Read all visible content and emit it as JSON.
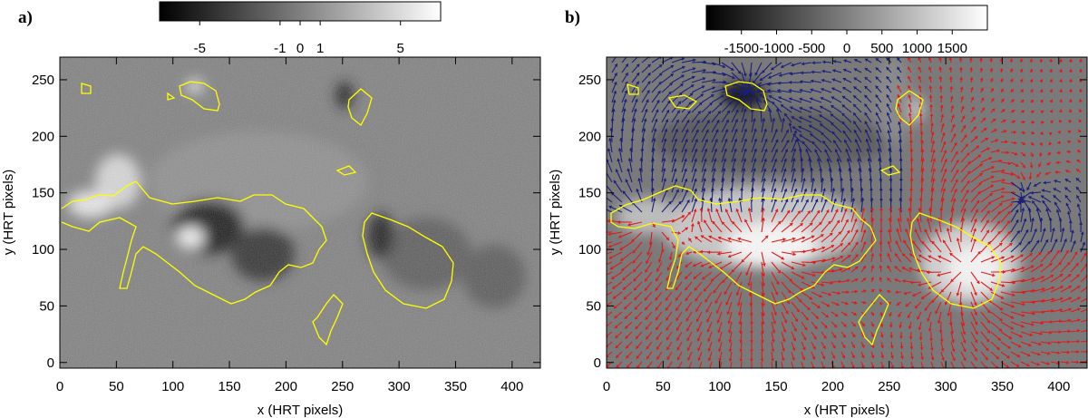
{
  "chart_data": [
    {
      "panel_label": "a)",
      "type": "heatmap",
      "xlabel": "x (HRT pixels)",
      "ylabel": "y (HRT pixels)",
      "xlim": [
        0,
        425
      ],
      "ylim": [
        -5,
        270
      ],
      "x_ticks": [
        0,
        50,
        100,
        150,
        200,
        250,
        300,
        350,
        400
      ],
      "y_ticks": [
        0,
        50,
        100,
        150,
        200,
        250
      ],
      "colorbar": {
        "range": [
          -7,
          7
        ],
        "ticks": [
          -5,
          -1,
          0,
          1,
          5
        ],
        "tick_labels": [
          "-5",
          "-1",
          "0",
          "1",
          "5"
        ],
        "colormap": "grayscale (black to white)"
      },
      "contour_color": "#ffff00"
    },
    {
      "panel_label": "b)",
      "type": "heatmap",
      "xlabel": "x (HRT pixels)",
      "ylabel": "y (HRT pixels)",
      "xlim": [
        0,
        425
      ],
      "ylim": [
        -5,
        270
      ],
      "x_ticks": [
        0,
        50,
        100,
        150,
        200,
        250,
        300,
        350,
        400
      ],
      "y_ticks": [
        0,
        50,
        100,
        150,
        200,
        250
      ],
      "colorbar": {
        "range": [
          -2000,
          2000
        ],
        "ticks": [
          -1500,
          -1000,
          -500,
          0,
          500,
          1000,
          1500
        ],
        "tick_labels": [
          "-1500",
          "-1000",
          "-500",
          "0",
          "500",
          "1000",
          "1500"
        ],
        "colormap": "grayscale (black to white)"
      },
      "contour_color": "#ffff00",
      "vector_colors": {
        "positive": "#e11a1a",
        "negative": "#1a1f7a"
      }
    }
  ]
}
